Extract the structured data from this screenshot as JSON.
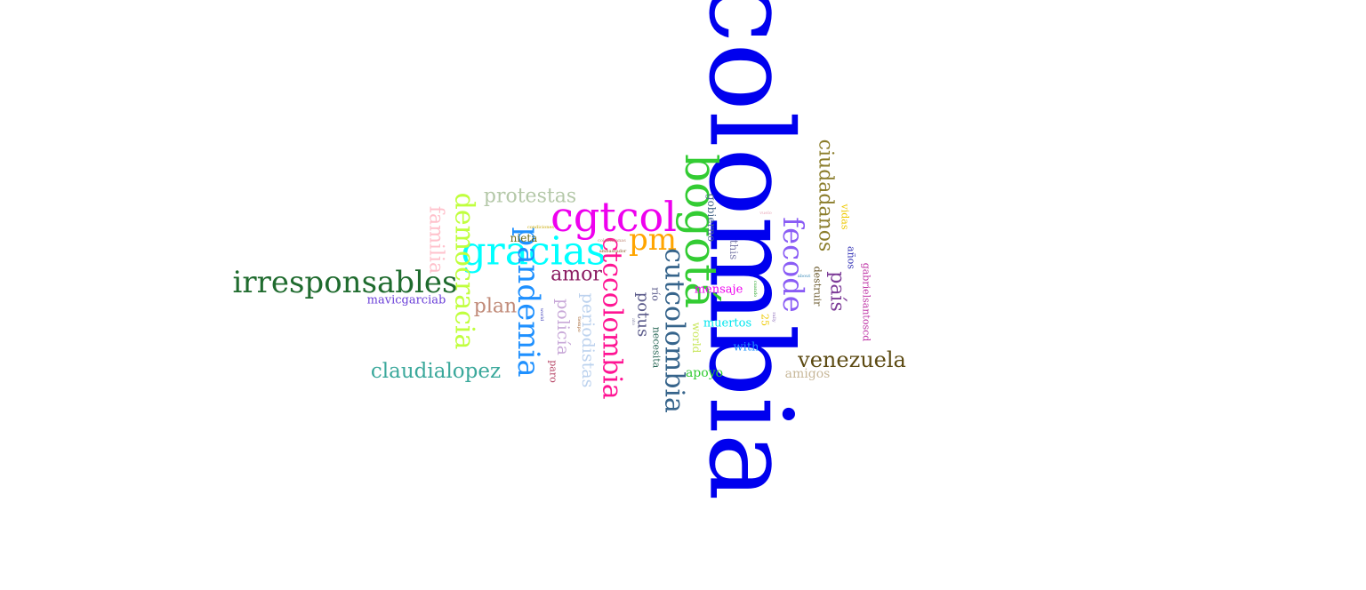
{
  "words": [
    {
      "text": "colombia",
      "color": "#0000ee",
      "rotated": true
    },
    {
      "text": "bogotá",
      "color": "#33cc33",
      "rotated": true
    },
    {
      "text": "cgtcol",
      "color": "#ee00ee",
      "rotated": false
    },
    {
      "text": "gracias",
      "color": "#00ffff",
      "rotated": false
    },
    {
      "text": "pm",
      "color": "#ffa500",
      "rotated": false
    },
    {
      "text": "irresponsables",
      "color": "#1f6b2e",
      "rotated": false
    },
    {
      "text": "democracia",
      "color": "#c0ff3e",
      "rotated": true
    },
    {
      "text": "pandemia",
      "color": "#1e90ff",
      "rotated": true
    },
    {
      "text": "ctccolombia",
      "color": "#ff1493",
      "rotated": true
    },
    {
      "text": "cutcolombia",
      "color": "#36648b",
      "rotated": true
    },
    {
      "text": "fecode",
      "color": "#8a5cf5",
      "rotated": true
    },
    {
      "text": "ciudadanos",
      "color": "#8b7d2b",
      "rotated": true
    },
    {
      "text": "país",
      "color": "#7d3c98",
      "rotated": true
    },
    {
      "text": "venezuela",
      "color": "#5c4a12",
      "rotated": false
    },
    {
      "text": "claudialopez",
      "color": "#3aa89b",
      "rotated": false
    },
    {
      "text": "protestas",
      "color": "#b4c8a8",
      "rotated": false
    },
    {
      "text": "familia",
      "color": "#ffc0cb",
      "rotated": true
    },
    {
      "text": "amor",
      "color": "#8b1c62",
      "rotated": false
    },
    {
      "text": "plan",
      "color": "#c08a78",
      "rotated": false
    },
    {
      "text": "policía",
      "color": "#c8a8d8",
      "rotated": true
    },
    {
      "text": "periodistas",
      "color": "#bcd2ee",
      "rotated": true
    },
    {
      "text": "potus",
      "color": "#5a5a8a",
      "rotated": true
    },
    {
      "text": "mavicgarciab",
      "color": "#6a3fd8",
      "rotated": false
    },
    {
      "text": "nieta",
      "color": "#6b6b1a",
      "rotated": false
    },
    {
      "text": "gobierno",
      "color": "#4a6a8a",
      "rotated": true
    },
    {
      "text": "this",
      "color": "#7a7aa8",
      "rotated": true
    },
    {
      "text": "río",
      "color": "#5a5a8a",
      "rotated": true
    },
    {
      "text": "necesita",
      "color": "#2e6b5a",
      "rotated": true
    },
    {
      "text": "mensaje",
      "color": "#ee00ee",
      "rotated": false
    },
    {
      "text": "muertos",
      "color": "#00e5ee",
      "rotated": false
    },
    {
      "text": "world",
      "color": "#c8e65a",
      "rotated": true
    },
    {
      "text": "with",
      "color": "#1e90ff",
      "rotated": false
    },
    {
      "text": "apoyo",
      "color": "#33cc33",
      "rotated": false
    },
    {
      "text": "amigos",
      "color": "#c8b89a",
      "rotated": false
    },
    {
      "text": "vidas",
      "color": "#eec900",
      "rotated": true
    },
    {
      "text": "años",
      "color": "#3a3ab8",
      "rotated": true
    },
    {
      "text": "destruir",
      "color": "#6b5a2e",
      "rotated": true
    },
    {
      "text": "gabrielsantoscd",
      "color": "#c03aa8",
      "rotated": true
    },
    {
      "text": "paro",
      "color": "#b84a6a",
      "rotated": true
    },
    {
      "text": "25",
      "color": "#eec900",
      "rotated": true
    },
    {
      "text": "about",
      "color": "#3a8ab8",
      "rotated": false
    },
    {
      "text": "condiciones",
      "color": "#c8a800",
      "rotated": false
    },
    {
      "text": "colombianas",
      "color": "#c08a78",
      "rotated": false
    },
    {
      "text": "ambassador",
      "color": "#8b5a2b",
      "rotated": false
    },
    {
      "text": "vuelo",
      "color": "#e8a8b8",
      "rotated": false
    },
    {
      "text": "cuando",
      "color": "#33aa33",
      "rotated": true
    },
    {
      "text": "rally",
      "color": "#8a6ab8",
      "rotated": true
    },
    {
      "text": "world",
      "color": "#3a3ab8",
      "rotated": true
    },
    {
      "text": "tiempo",
      "color": "#a86a3a",
      "rotated": true
    },
    {
      "text": "ato",
      "color": "#8a8aa8",
      "rotated": true
    }
  ]
}
